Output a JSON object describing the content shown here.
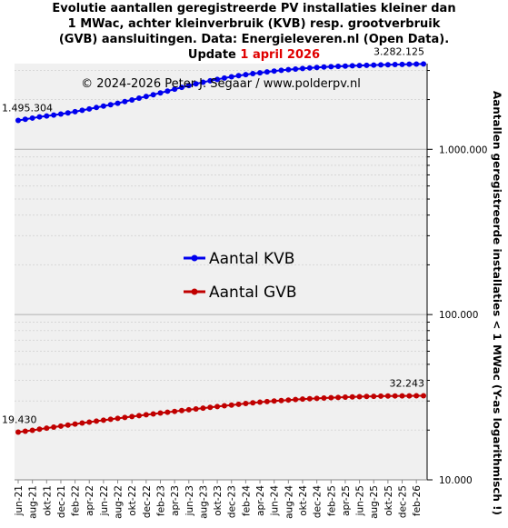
{
  "title_lines": [
    "Evolutie aantallen geregistreerde PV installaties kleiner dan",
    "1 MWac, achter kleinverbruik (KVB) resp. grootverbruik",
    "(GVB) aansluitingen. Data: Energieleveren.nl (Open Data)."
  ],
  "update_prefix": "Update",
  "update_date": "1 april 2026",
  "copyright": "© 2024-2026  Peter J. Segaar / www.polderpv.nl",
  "colors": {
    "kvb": "#0000ee",
    "gvb": "#c00000",
    "plot_bg": "#f0f0f0",
    "accent": "#e00000"
  },
  "chart_data": {
    "type": "line",
    "yscale": "log",
    "ylim": [
      10000,
      3300000
    ],
    "ylabel": "Aantallen geregistreerde installaties < 1 MWac (Y-as logarithmisch !)",
    "yticks": [
      {
        "value": 10000,
        "label": "10.000"
      },
      {
        "value": 100000,
        "label": "100.000"
      },
      {
        "value": 1000000,
        "label": "1.000.000"
      }
    ],
    "xtick_labels": [
      "jun-21",
      "aug-21",
      "okt-21",
      "dec-21",
      "feb-22",
      "apr-22",
      "jun-22",
      "aug-22",
      "okt-22",
      "dec-22",
      "feb-23",
      "apr-23",
      "jun-23",
      "aug-23",
      "okt-23",
      "dec-23",
      "feb-24",
      "apr-24",
      "jun-24",
      "aug-24",
      "okt-24",
      "dec-24",
      "feb-25",
      "apr-25",
      "jun-25",
      "aug-25",
      "okt-25",
      "dec-25",
      "feb-26"
    ],
    "x": [
      "jun-21",
      "jul-21",
      "aug-21",
      "sep-21",
      "okt-21",
      "nov-21",
      "dec-21",
      "jan-22",
      "feb-22",
      "mrt-22",
      "apr-22",
      "mei-22",
      "jun-22",
      "jul-22",
      "aug-22",
      "sep-22",
      "okt-22",
      "nov-22",
      "dec-22",
      "jan-23",
      "feb-23",
      "mrt-23",
      "apr-23",
      "mei-23",
      "jun-23",
      "jul-23",
      "aug-23",
      "sep-23",
      "okt-23",
      "nov-23",
      "dec-23",
      "jan-24",
      "feb-24",
      "mrt-24",
      "apr-24",
      "mei-24",
      "jun-24",
      "jul-24",
      "aug-24",
      "sep-24",
      "okt-24",
      "nov-24",
      "dec-24",
      "jan-25",
      "feb-25",
      "mrt-25",
      "apr-25",
      "mei-25",
      "jun-25",
      "jul-25",
      "aug-25",
      "sep-25",
      "okt-25",
      "nov-25",
      "dec-25",
      "jan-26",
      "feb-26",
      "mrt-26"
    ],
    "series": [
      {
        "name": "Aantal KVB",
        "color": "#0000ee",
        "values": [
          1495304,
          1520000,
          1545000,
          1570000,
          1590000,
          1612000,
          1635000,
          1660000,
          1690000,
          1722000,
          1755000,
          1790000,
          1825000,
          1862000,
          1900000,
          1945000,
          1990000,
          2040000,
          2090000,
          2140000,
          2195000,
          2250000,
          2310000,
          2370000,
          2430000,
          2490000,
          2545000,
          2600000,
          2650000,
          2700000,
          2745000,
          2790000,
          2830000,
          2870000,
          2905000,
          2940000,
          2975000,
          3005000,
          3035000,
          3060000,
          3085000,
          3105000,
          3125000,
          3145000,
          3160000,
          3175000,
          3188000,
          3200000,
          3212000,
          3222000,
          3232000,
          3242000,
          3250000,
          3258000,
          3265000,
          3272000,
          3278000,
          3282125
        ]
      },
      {
        "name": "Aantal GVB",
        "color": "#c00000",
        "values": [
          19430,
          19700,
          19950,
          20250,
          20550,
          20850,
          21150,
          21450,
          21750,
          22050,
          22350,
          22650,
          22950,
          23250,
          23550,
          23850,
          24150,
          24450,
          24750,
          25050,
          25350,
          25650,
          25950,
          26250,
          26550,
          26850,
          27150,
          27450,
          27750,
          28050,
          28350,
          28650,
          28950,
          29250,
          29500,
          29750,
          30000,
          30200,
          30400,
          30600,
          30800,
          30950,
          31100,
          31250,
          31400,
          31520,
          31640,
          31750,
          31850,
          31940,
          32020,
          32090,
          32140,
          32180,
          32210,
          32230,
          32240,
          32243
        ]
      }
    ],
    "annotations": [
      {
        "text": "1.495.304",
        "series": 0,
        "point": "first"
      },
      {
        "text": "3.282.125",
        "series": 0,
        "point": "last"
      },
      {
        "text": "19.430",
        "series": 1,
        "point": "first"
      },
      {
        "text": "32.243",
        "series": 1,
        "point": "last"
      }
    ],
    "legend_position": "center"
  }
}
